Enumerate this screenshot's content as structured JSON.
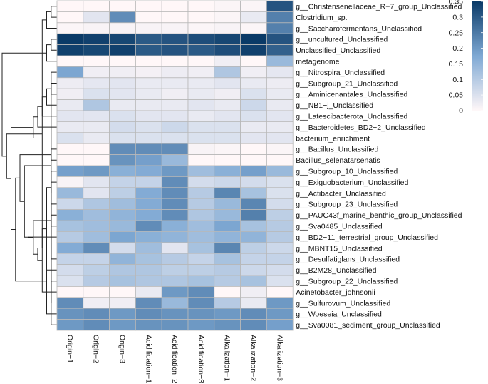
{
  "chart_data": {
    "type": "heatmap",
    "title": "",
    "columns": [
      "Origin−1",
      "Origin−2",
      "Origin−3",
      "Acidification−1",
      "Acidification−2",
      "Acidification−3",
      "Alkalization−1",
      "Alkalization−2",
      "Alkalization−3"
    ],
    "rows": [
      "g__Christensenellaceae_R−7_group_Unclassified",
      "Clostridium_sp.",
      "g__Saccharofermentans_Unclassified",
      "g__uncultured_Unclassified",
      "Unclassified_Unclassified",
      "metagenome",
      "g__Nitrospira_Unclassified",
      "g__Subgroup_21_Unclassified",
      "g__Aminicenantales_Unclassified",
      "g__NB1−j_Unclassified",
      "g__Latescibacterota_Unclassified",
      "g__Bacteroidetes_BD2−2_Unclassified",
      "bacterium_enrichment",
      "g__Bacillus_Unclassified",
      "Bacillus_selenatarsenatis",
      "g__Subgroup_10_Unclassified",
      "g__Exiguobacterium_Unclassified",
      "g__Actibacter_Unclassified",
      "g__Subgroup_23_Unclassified",
      "g__PAUC43f_marine_benthic_group_Unclassified",
      "g__Sva0485_Unclassified",
      "g__BD2−11_terrestrial_group_Unclassified",
      "g__MBNT15_Unclassified",
      "g__Desulfatiglans_Unclassified",
      "g__B2M28_Unclassified",
      "g__Subgroup_22_Unclassified",
      "Acinetobacter_johnsonii",
      "g__Sulfurovum_Unclassified",
      "g__Woeseia_Unclassified",
      "g__Sva0081_sediment_group_Unclassified"
    ],
    "values": [
      [
        0.0,
        0.0,
        0.0,
        0.0,
        0.0,
        0.0,
        0.005,
        0.005,
        0.31
      ],
      [
        0.0,
        0.04,
        0.22,
        0.0,
        0.0,
        0.0,
        0.005,
        0.03,
        0.24
      ],
      [
        0.005,
        0.01,
        0.01,
        0.01,
        0.01,
        0.005,
        0.01,
        0.005,
        0.24
      ],
      [
        0.35,
        0.34,
        0.33,
        0.3,
        0.31,
        0.32,
        0.33,
        0.35,
        0.31
      ],
      [
        0.34,
        0.33,
        0.34,
        0.3,
        0.31,
        0.3,
        0.32,
        0.34,
        0.29
      ],
      [
        0.0,
        0.0,
        0.0,
        0.0,
        0.0,
        0.0,
        0.02,
        0.0,
        0.14
      ],
      [
        0.18,
        0.02,
        0.02,
        0.015,
        0.025,
        0.02,
        0.11,
        0.02,
        0.035
      ],
      [
        0.025,
        0.035,
        0.04,
        0.03,
        0.03,
        0.03,
        0.04,
        0.03,
        0.025
      ],
      [
        0.02,
        0.05,
        0.04,
        0.03,
        0.02,
        0.03,
        0.02,
        0.05,
        0.03
      ],
      [
        0.03,
        0.11,
        0.03,
        0.03,
        0.03,
        0.04,
        0.03,
        0.07,
        0.03
      ],
      [
        0.04,
        0.04,
        0.05,
        0.04,
        0.04,
        0.03,
        0.04,
        0.05,
        0.04
      ],
      [
        0.03,
        0.03,
        0.06,
        0.05,
        0.07,
        0.05,
        0.05,
        0.03,
        0.03
      ],
      [
        0.05,
        0.03,
        0.05,
        0.05,
        0.05,
        0.05,
        0.05,
        0.04,
        0.04
      ],
      [
        0.0,
        0.0,
        0.22,
        0.22,
        0.22,
        0.01,
        0.005,
        0.0,
        0.005
      ],
      [
        0.0,
        0.0,
        0.21,
        0.19,
        0.14,
        0.0,
        0.0,
        0.0,
        0.0
      ],
      [
        0.19,
        0.2,
        0.16,
        0.17,
        0.2,
        0.13,
        0.16,
        0.19,
        0.14
      ],
      [
        0.01,
        0.04,
        0.08,
        0.08,
        0.22,
        0.06,
        0.07,
        0.06,
        0.05
      ],
      [
        0.14,
        0.04,
        0.09,
        0.17,
        0.22,
        0.1,
        0.23,
        0.12,
        0.05
      ],
      [
        0.07,
        0.11,
        0.13,
        0.17,
        0.22,
        0.1,
        0.14,
        0.23,
        0.06
      ],
      [
        0.16,
        0.13,
        0.15,
        0.17,
        0.22,
        0.11,
        0.14,
        0.24,
        0.09
      ],
      [
        0.12,
        0.13,
        0.14,
        0.22,
        0.16,
        0.13,
        0.18,
        0.12,
        0.1
      ],
      [
        0.1,
        0.13,
        0.18,
        0.16,
        0.15,
        0.13,
        0.15,
        0.15,
        0.1
      ],
      [
        0.17,
        0.22,
        0.06,
        0.13,
        0.04,
        0.12,
        0.23,
        0.09,
        0.07
      ],
      [
        0.08,
        0.08,
        0.15,
        0.12,
        0.1,
        0.08,
        0.12,
        0.08,
        0.08
      ],
      [
        0.06,
        0.09,
        0.11,
        0.11,
        0.09,
        0.09,
        0.1,
        0.07,
        0.06
      ],
      [
        0.05,
        0.1,
        0.12,
        0.11,
        0.11,
        0.12,
        0.1,
        0.12,
        0.05
      ],
      [
        0.0,
        0.0,
        0.0,
        0.03,
        0.2,
        0.22,
        0.0,
        0.02,
        0.0
      ],
      [
        0.22,
        0.02,
        0.02,
        0.22,
        0.14,
        0.22,
        0.1,
        0.03,
        0.2
      ],
      [
        0.21,
        0.22,
        0.2,
        0.22,
        0.21,
        0.21,
        0.2,
        0.22,
        0.2
      ],
      [
        0.2,
        0.22,
        0.2,
        0.21,
        0.21,
        0.2,
        0.21,
        0.22,
        0.19
      ]
    ],
    "colorbar": {
      "range": [
        0,
        0.35
      ],
      "ticks": [
        "0",
        "0.05",
        "0.1",
        "0.15",
        "0.2",
        "0.25",
        "0.3",
        "0.35"
      ],
      "tick_values": [
        0,
        0.05,
        0.1,
        0.15,
        0.2,
        0.25,
        0.3,
        0.35
      ],
      "color_low": "#fff7f8",
      "color_mid": "#7fa9d4",
      "color_high": "#0a3a67"
    },
    "row_dendrogram": [
      [
        0,
        1
      ],
      [
        30,
        2
      ],
      [
        31,
        22
      ],
      [
        3,
        4
      ],
      [
        33,
        5
      ],
      [
        16,
        17
      ],
      [
        35,
        24
      ],
      [
        27,
        25
      ],
      [
        37,
        36
      ],
      [
        18,
        26
      ],
      [
        38,
        39
      ],
      [
        19,
        20
      ],
      [
        40,
        41
      ],
      [
        42,
        21
      ],
      [
        23,
        6
      ],
      [
        43,
        44
      ],
      [
        13,
        14
      ],
      [
        45,
        46
      ],
      [
        15,
        29
      ],
      [
        28,
        48
      ],
      [
        47,
        49
      ],
      [
        7,
        8
      ],
      [
        51,
        9
      ],
      [
        52,
        10
      ],
      [
        53,
        11
      ],
      [
        54,
        12
      ],
      [
        50,
        55
      ],
      [
        56,
        32
      ],
      [
        57,
        34
      ]
    ]
  }
}
